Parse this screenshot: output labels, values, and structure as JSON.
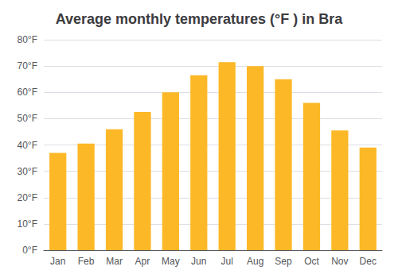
{
  "chart_data": {
    "type": "bar",
    "title": "Average monthly temperatures (°F ) in Bra",
    "categories": [
      "Jan",
      "Feb",
      "Mar",
      "Apr",
      "May",
      "Jun",
      "Jul",
      "Aug",
      "Sep",
      "Oct",
      "Nov",
      "Dec"
    ],
    "values": [
      37,
      40.5,
      46,
      52.5,
      60,
      66.5,
      71.5,
      70,
      65,
      56,
      45.5,
      39
    ],
    "color": "#FDB827",
    "ylim": [
      0,
      80
    ],
    "yticks": [
      {
        "value": 0,
        "label": "0°F"
      },
      {
        "value": 10,
        "label": "10°F"
      },
      {
        "value": 20,
        "label": "20°F"
      },
      {
        "value": 30,
        "label": "30°F"
      },
      {
        "value": 40,
        "label": "40°F"
      },
      {
        "value": 50,
        "label": "50°F"
      },
      {
        "value": 60,
        "label": "60°F"
      },
      {
        "value": 70,
        "label": "70°F"
      },
      {
        "value": 80,
        "label": "80°F"
      }
    ],
    "grid": true
  }
}
